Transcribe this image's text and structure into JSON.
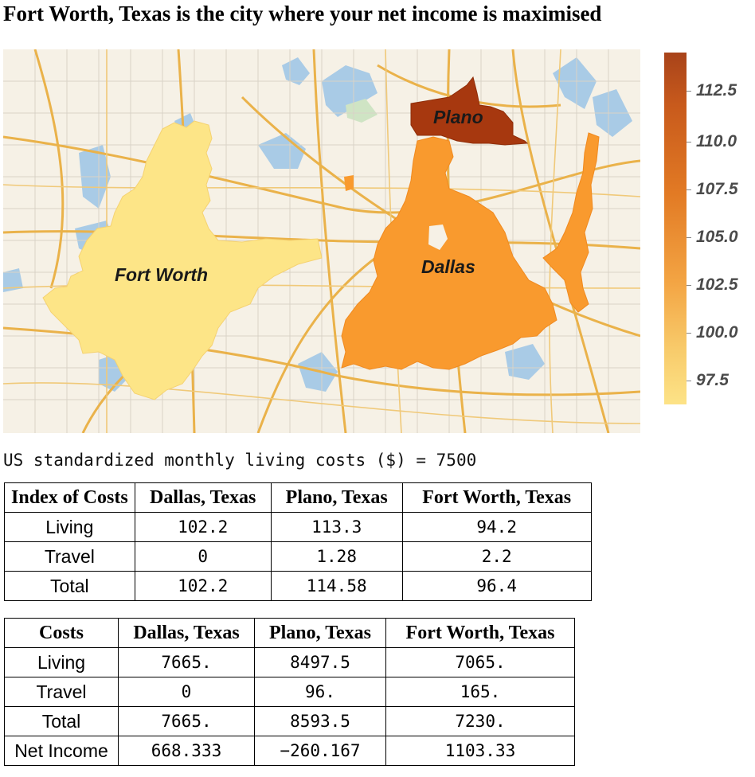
{
  "title": "Fort Worth, Texas is the city where your net income is maximised",
  "map": {
    "cities": [
      {
        "name": "Fort Worth",
        "value": 96.4,
        "color": "#fde587"
      },
      {
        "name": "Dallas",
        "value": 102.2,
        "color": "#f99a2e"
      },
      {
        "name": "Plano",
        "value": 114.58,
        "color": "#a7380f"
      }
    ],
    "legend": {
      "labels": [
        "112.5",
        "110.0",
        "107.5",
        "105.0",
        "102.5",
        "100.0",
        "97.5"
      ],
      "range": [
        96.4,
        114.58
      ]
    }
  },
  "subtitle": "US standardized monthly living costs ($) = 7500",
  "table1": {
    "headers": [
      "Index of Costs",
      "Dallas, Texas",
      "Plano, Texas",
      "Fort Worth, Texas"
    ],
    "rows": [
      [
        "Living",
        "102.2",
        "113.3",
        "94.2"
      ],
      [
        "Travel",
        "0",
        "1.28",
        "2.2"
      ],
      [
        "Total",
        "102.2",
        "114.58",
        "96.4"
      ]
    ]
  },
  "table2": {
    "headers": [
      "Costs",
      "Dallas, Texas",
      "Plano, Texas",
      "Fort Worth, Texas"
    ],
    "rows": [
      [
        "Living",
        "7665.",
        "8497.5",
        "7065."
      ],
      [
        "Travel",
        "0",
        "96.",
        "165."
      ],
      [
        "Total",
        "7665.",
        "8593.5",
        "7230."
      ],
      [
        "Net Income",
        "668.333",
        "−260.167",
        "1103.33"
      ]
    ]
  }
}
